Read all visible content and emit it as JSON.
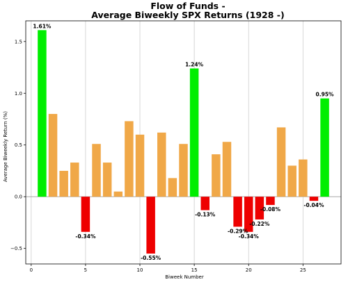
{
  "chart_data": {
    "type": "bar",
    "title_line1": "Flow of Funds -",
    "title_line2": "Average Biweekly SPX Returns (1928 -)",
    "xlabel": "Biweek Number",
    "ylabel": "Average Biweekly Return (%)",
    "xlim": [
      -0.5,
      28.5
    ],
    "ylim": [
      -0.65,
      1.7
    ],
    "x_ticks": [
      0,
      5,
      10,
      15,
      20,
      25
    ],
    "y_ticks": [
      -0.5,
      0.0,
      0.5,
      1.0,
      1.5
    ],
    "y_tick_labels": [
      "−0.5",
      "0.0",
      "0.5",
      "1.0",
      "1.5"
    ],
    "grid": "vertical",
    "colors": {
      "top": "#00ee00",
      "positive": "#f0a848",
      "negative": "#ee0000",
      "zero_line": "#9a9a9a",
      "grid": "#cccccc"
    },
    "bars": [
      {
        "x": 1,
        "value": 1.61,
        "color": "top",
        "label": "1.61%"
      },
      {
        "x": 2,
        "value": 0.8,
        "color": "positive",
        "label": ""
      },
      {
        "x": 3,
        "value": 0.25,
        "color": "positive",
        "label": ""
      },
      {
        "x": 4,
        "value": 0.33,
        "color": "positive",
        "label": ""
      },
      {
        "x": 5,
        "value": -0.34,
        "color": "negative",
        "label": "-0.34%"
      },
      {
        "x": 6,
        "value": 0.51,
        "color": "positive",
        "label": ""
      },
      {
        "x": 7,
        "value": 0.33,
        "color": "positive",
        "label": ""
      },
      {
        "x": 8,
        "value": 0.05,
        "color": "positive",
        "label": ""
      },
      {
        "x": 9,
        "value": 0.73,
        "color": "positive",
        "label": ""
      },
      {
        "x": 10,
        "value": 0.6,
        "color": "positive",
        "label": ""
      },
      {
        "x": 11,
        "value": -0.55,
        "color": "negative",
        "label": "-0.55%"
      },
      {
        "x": 12,
        "value": 0.62,
        "color": "positive",
        "label": ""
      },
      {
        "x": 13,
        "value": 0.18,
        "color": "positive",
        "label": ""
      },
      {
        "x": 14,
        "value": 0.51,
        "color": "positive",
        "label": ""
      },
      {
        "x": 15,
        "value": 1.24,
        "color": "top",
        "label": "1.24%"
      },
      {
        "x": 16,
        "value": -0.13,
        "color": "negative",
        "label": "-0.13%"
      },
      {
        "x": 17,
        "value": 0.41,
        "color": "positive",
        "label": ""
      },
      {
        "x": 18,
        "value": 0.53,
        "color": "positive",
        "label": ""
      },
      {
        "x": 19,
        "value": -0.29,
        "color": "negative",
        "label": "-0.29%"
      },
      {
        "x": 20,
        "value": -0.34,
        "color": "negative",
        "label": "-0.34%"
      },
      {
        "x": 21,
        "value": -0.22,
        "color": "negative",
        "label": "-0.22%"
      },
      {
        "x": 22,
        "value": -0.08,
        "color": "negative",
        "label": "-0.08%"
      },
      {
        "x": 23,
        "value": 0.67,
        "color": "positive",
        "label": ""
      },
      {
        "x": 24,
        "value": 0.3,
        "color": "positive",
        "label": ""
      },
      {
        "x": 25,
        "value": 0.36,
        "color": "positive",
        "label": ""
      },
      {
        "x": 26,
        "value": -0.04,
        "color": "negative",
        "label": "-0.04%"
      },
      {
        "x": 27,
        "value": 0.95,
        "color": "top",
        "label": "0.95%"
      }
    ]
  }
}
